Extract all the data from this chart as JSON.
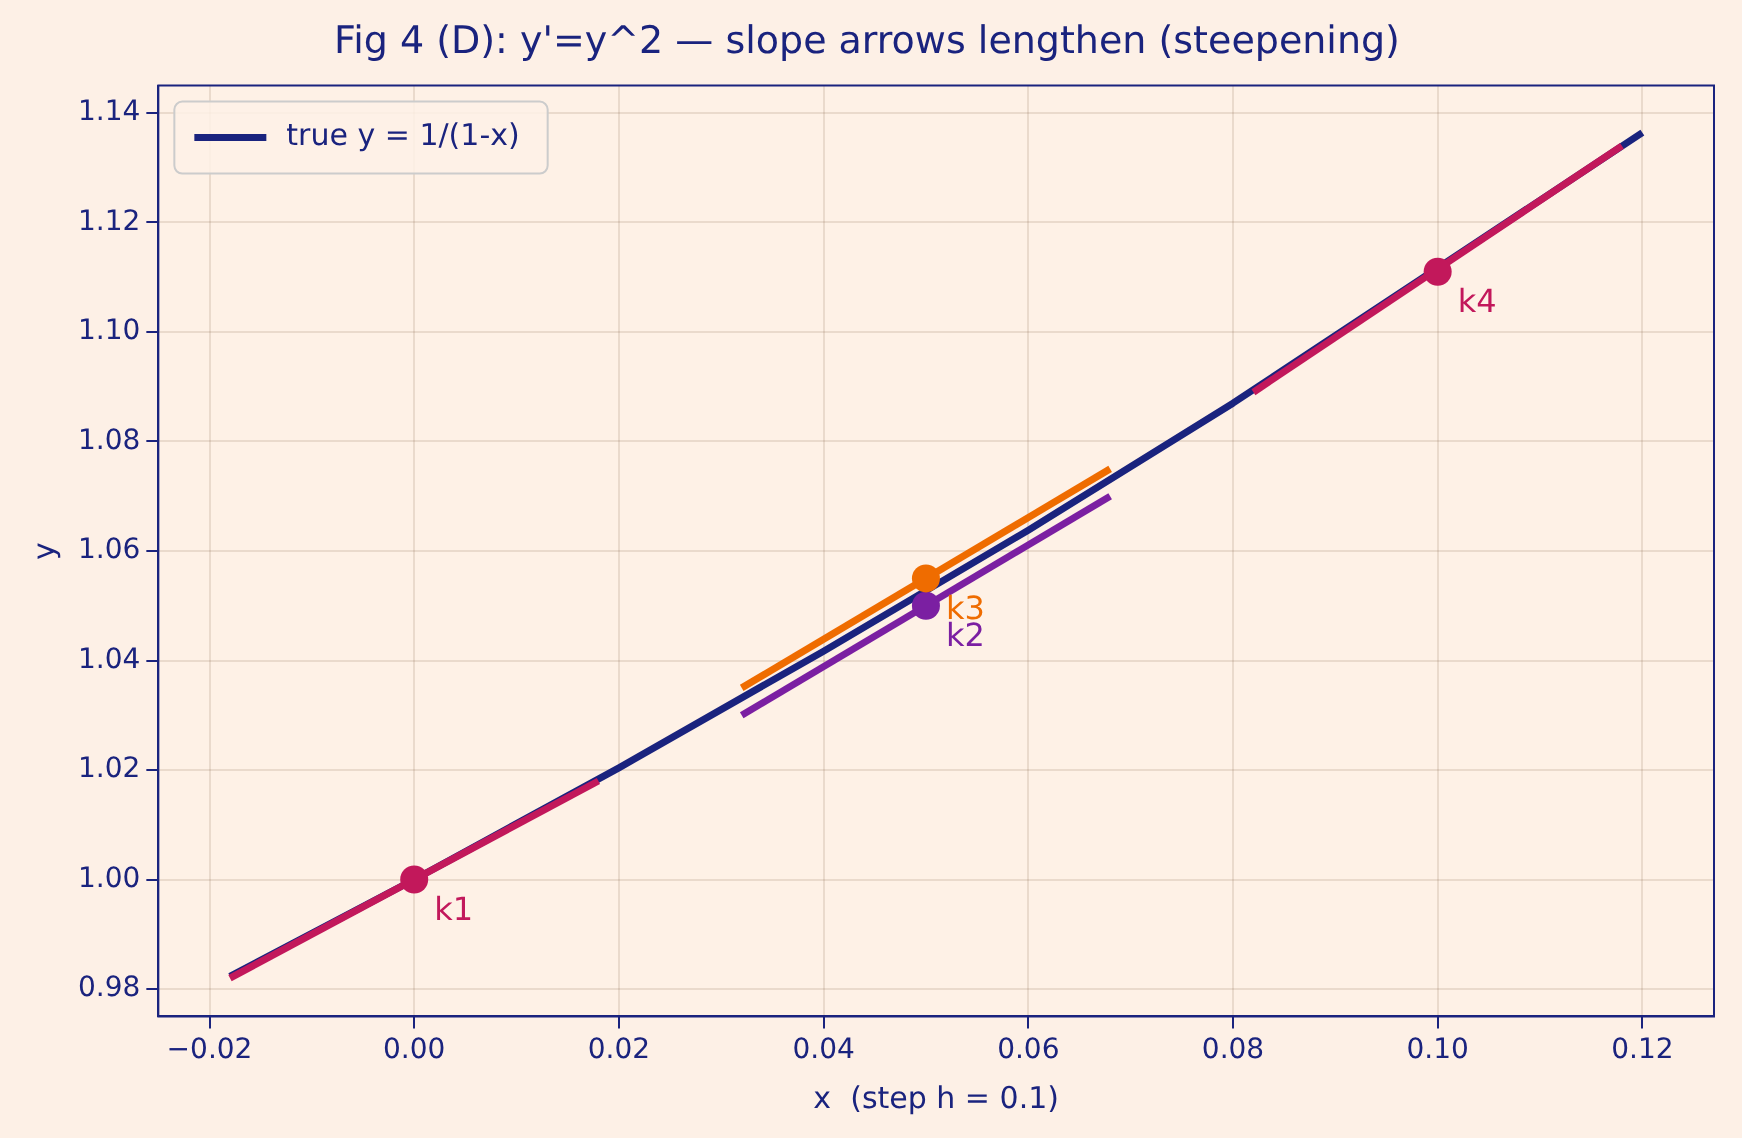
{
  "chart_data": {
    "type": "line",
    "title": "Fig 4 (D): y'=y^2 — slope arrows lengthen (steepening)",
    "xlabel": "x  (step h = 0.1)",
    "ylabel": "y",
    "series": [
      {
        "name": "true y = 1/(1-x)",
        "color": "#1a237e",
        "x": [
          -0.018,
          0,
          0.02,
          0.04,
          0.06,
          0.08,
          0.12
        ],
        "values": [
          0.9823,
          1,
          1.0204,
          1.0417,
          1.0638,
          1.087,
          1.1364
        ]
      },
      {
        "color": "#c2185b",
        "x": [
          -0.018,
          0.018
        ],
        "values": [
          0.982,
          1.018
        ]
      },
      {
        "color": "#7b1fa2",
        "x": [
          0.032,
          0.068
        ],
        "values": [
          1.03,
          1.07
        ]
      },
      {
        "color": "#ef6c00",
        "x": [
          0.032,
          0.068
        ],
        "values": [
          1.035,
          1.075
        ]
      },
      {
        "color": "#c2185b",
        "x": [
          0.082,
          0.118
        ],
        "values": [
          1.089,
          1.134
        ]
      },
      {
        "type": "scatter",
        "marker": "circle",
        "colors": [
          "#c2185b",
          "#7b1fa2",
          "#ef6c00",
          "#c2185b"
        ],
        "x": [
          0,
          0.05,
          0.05,
          0.1
        ],
        "values": [
          1,
          1.05,
          1.055,
          1.111
        ]
      }
    ],
    "annotations": [
      {
        "text": "k1",
        "x": 0,
        "y": 1
      },
      {
        "text": "k2",
        "x": 0.05,
        "y": 1.05
      },
      {
        "text": "k3",
        "x": 0.05,
        "y": 1.055
      },
      {
        "text": "k4",
        "x": 0.1,
        "y": 1.111
      }
    ],
    "xlim": [
      -0.025,
      0.127
    ],
    "ylim": [
      0.975,
      1.145
    ],
    "xticks": [
      {
        "value": -0.02,
        "label": "−0.02"
      },
      {
        "value": 0,
        "label": "0.00"
      },
      {
        "value": 0.02,
        "label": "0.02"
      },
      {
        "value": 0.04,
        "label": "0.04"
      },
      {
        "value": 0.06,
        "label": "0.06"
      },
      {
        "value": 0.08,
        "label": "0.08"
      },
      {
        "value": 0.1,
        "label": "0.10"
      },
      {
        "value": 0.12,
        "label": "0.12"
      }
    ],
    "yticks": [
      {
        "value": 0.98,
        "label": "0.98"
      },
      {
        "value": 1,
        "label": "1.00"
      },
      {
        "value": 1.02,
        "label": "1.02"
      },
      {
        "value": 1.04,
        "label": "1.04"
      },
      {
        "value": 1.06,
        "label": "1.06"
      },
      {
        "value": 1.08,
        "label": "1.08"
      },
      {
        "value": 1.1,
        "label": "1.10"
      },
      {
        "value": 1.12,
        "label": "1.12"
      },
      {
        "value": 1.14,
        "label": "1.14"
      }
    ],
    "grid": true,
    "legend": "top left",
    "line_style": "solid"
  }
}
